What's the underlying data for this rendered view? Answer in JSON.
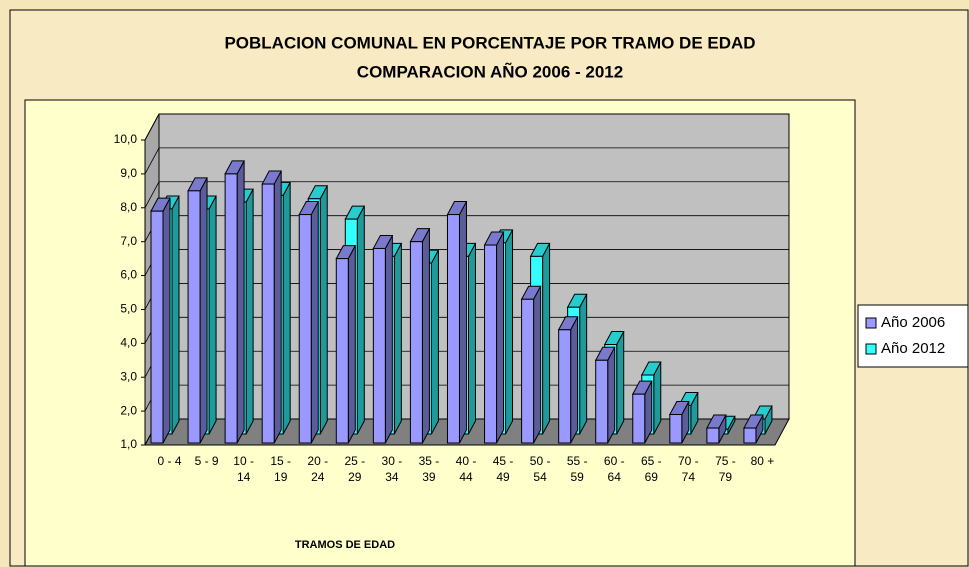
{
  "chart_data": {
    "type": "bar3d",
    "title": "POBLACION COMUNAL EN PORCENTAJE POR TRAMO DE EDAD",
    "subtitle": "COMPARACION AÑO  2006 - 2012",
    "x_label": "TRAMOS DE EDAD",
    "categories": [
      "0 - 4",
      "5 - 9",
      "10 - 14",
      "15 - 19",
      "20 - 24",
      "25 - 29",
      "30 - 34",
      "35 - 39",
      "40 - 44",
      "45 - 49",
      "50 - 54",
      "55 - 59",
      "60 - 64",
      "65 - 69",
      "70 - 74",
      "75 - 79",
      "80 +"
    ],
    "series": [
      {
        "name": "Año 2006",
        "color": "#9999ff",
        "values": [
          7.9,
          8.5,
          9.0,
          8.7,
          7.8,
          6.5,
          6.8,
          7.0,
          7.8,
          6.9,
          5.3,
          4.4,
          3.5,
          2.5,
          1.9,
          1.5,
          1.5
        ]
      },
      {
        "name": "Año 2012",
        "color": "#33ffff",
        "values": [
          7.7,
          7.7,
          7.9,
          8.1,
          8.0,
          7.4,
          6.3,
          6.1,
          6.3,
          6.7,
          6.3,
          4.8,
          3.7,
          2.8,
          1.9,
          1.2,
          1.5
        ]
      }
    ],
    "ylim": [
      1,
      10
    ],
    "yticks": [
      {
        "value": 1,
        "label": "1,0"
      },
      {
        "value": 2,
        "label": "2,0"
      },
      {
        "value": 3,
        "label": "3,0"
      },
      {
        "value": 4,
        "label": "4,0"
      },
      {
        "value": 5,
        "label": "5,0"
      },
      {
        "value": 6,
        "label": "6,0"
      },
      {
        "value": 7,
        "label": "7,0"
      },
      {
        "value": 8,
        "label": "8,0"
      },
      {
        "value": 9,
        "label": "9,0"
      },
      {
        "value": 10,
        "label": "10,0"
      }
    ],
    "grid": true
  }
}
